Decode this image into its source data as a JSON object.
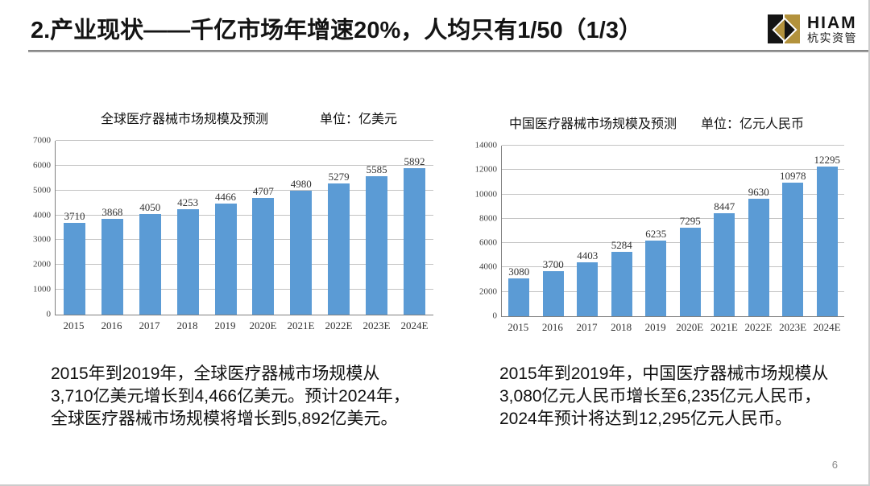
{
  "slide": {
    "title": "2.产业现状——千亿市场年增速20%，人均只有1/50（1/3）",
    "page_number": "6"
  },
  "logo": {
    "wordmark": "HIAM",
    "company": "杭实资管",
    "black": "#141414",
    "gold": "#b3923c"
  },
  "chart_data": [
    {
      "type": "bar",
      "title": "全球医疗器械市场规模及预测",
      "unit_label": "单位：亿美元",
      "categories": [
        "2015",
        "2016",
        "2017",
        "2018",
        "2019",
        "2020E",
        "2021E",
        "2022E",
        "2023E",
        "2024E"
      ],
      "values": [
        3710,
        3868,
        4050,
        4253,
        4466,
        4707,
        4980,
        5279,
        5585,
        5892
      ],
      "ylim": [
        0,
        7000
      ],
      "ytick_step": 1000,
      "bar_color": "#5B9BD5",
      "grid": true,
      "legend": "none"
    },
    {
      "type": "bar",
      "title": "中国医疗器械市场规模及预测",
      "unit_label": "单位：亿元人民币",
      "categories": [
        "2015",
        "2016",
        "2017",
        "2018",
        "2019",
        "2020E",
        "2021E",
        "2022E",
        "2023E",
        "2024E"
      ],
      "values": [
        3080,
        3700,
        4403,
        5284,
        6235,
        7295,
        8447,
        9630,
        10978,
        12295
      ],
      "ylim": [
        0,
        14000
      ],
      "ytick_step": 2000,
      "bar_color": "#5B9BD5",
      "grid": true,
      "legend": "none"
    }
  ],
  "notes": {
    "left": "2015年到2019年，全球医疗器械市场规模从3,710亿美元增长到4,466亿美元。预计2024年，全球医疗器械市场规模将增长到5,892亿美元。",
    "right": "2015年到2019年，中国医疗器械市场规模从3,080亿元人民币增长至6,235亿元人民币，2024年预计将达到12,295亿元人民币。"
  }
}
